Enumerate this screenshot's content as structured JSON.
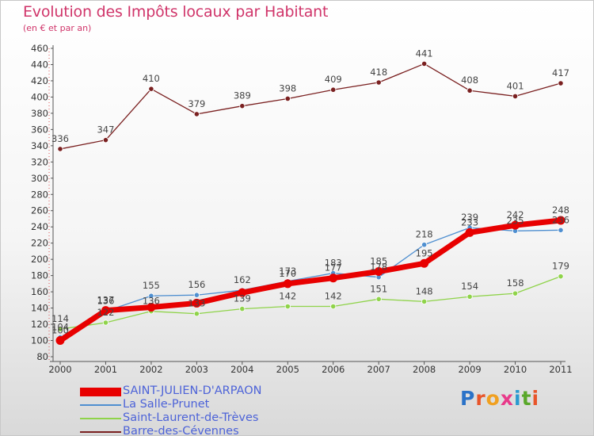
{
  "header": {
    "title": "Evolution des Impôts locaux par Habitant",
    "subtitle": "(en € et par an)"
  },
  "logo": {
    "text": "Proxiti"
  },
  "chart_data": {
    "type": "line",
    "title": "Evolution des Impôts locaux par Habitant",
    "subtitle": "(en € et par an)",
    "xlabel": "",
    "ylabel": "",
    "x": [
      "2000",
      "2001",
      "2002",
      "2003",
      "2004",
      "2005",
      "2006",
      "2007",
      "2008",
      "2009",
      "2010",
      "2011"
    ],
    "yticks": [
      80,
      100,
      120,
      140,
      160,
      180,
      200,
      220,
      240,
      260,
      280,
      300,
      320,
      340,
      360,
      380,
      400,
      420,
      440,
      460
    ],
    "ylim": [
      80,
      460
    ],
    "grid": false,
    "legend_position": "bottom-left",
    "series": [
      {
        "name": "SAINT-JULIEN-D'ARPAON",
        "color": "#e80000",
        "labels": [
          "100",
          "137",
          "",
          "",
          "",
          "170",
          "177",
          "185",
          "195",
          "233",
          "242",
          "248"
        ],
        "values": [
          100,
          137,
          141,
          146,
          159,
          170,
          177,
          185,
          195,
          233,
          242,
          248
        ]
      },
      {
        "name": "La Salle-Prunet",
        "color": "#4f8fd0",
        "labels": [
          "104",
          "136",
          "155",
          "156",
          "162",
          "173",
          "183",
          "178",
          "218",
          "239",
          "235",
          "236"
        ],
        "values": [
          104,
          136,
          155,
          156,
          162,
          173,
          183,
          178,
          218,
          239,
          235,
          236
        ]
      },
      {
        "name": "Saint-Laurent-de-Trèves",
        "color": "#8fd34a",
        "labels": [
          "114",
          "122",
          "136",
          "133",
          "139",
          "142",
          "142",
          "151",
          "148",
          "154",
          "158",
          "179"
        ],
        "values": [
          114,
          122,
          136,
          133,
          139,
          142,
          142,
          151,
          148,
          154,
          158,
          179
        ]
      },
      {
        "name": "Barre-des-Cévennes",
        "color": "#7a2020",
        "labels": [
          "336",
          "347",
          "410",
          "379",
          "389",
          "398",
          "409",
          "418",
          "441",
          "408",
          "401",
          "417"
        ],
        "values": [
          336,
          347,
          410,
          379,
          389,
          398,
          409,
          418,
          441,
          408,
          401,
          417
        ]
      }
    ]
  }
}
